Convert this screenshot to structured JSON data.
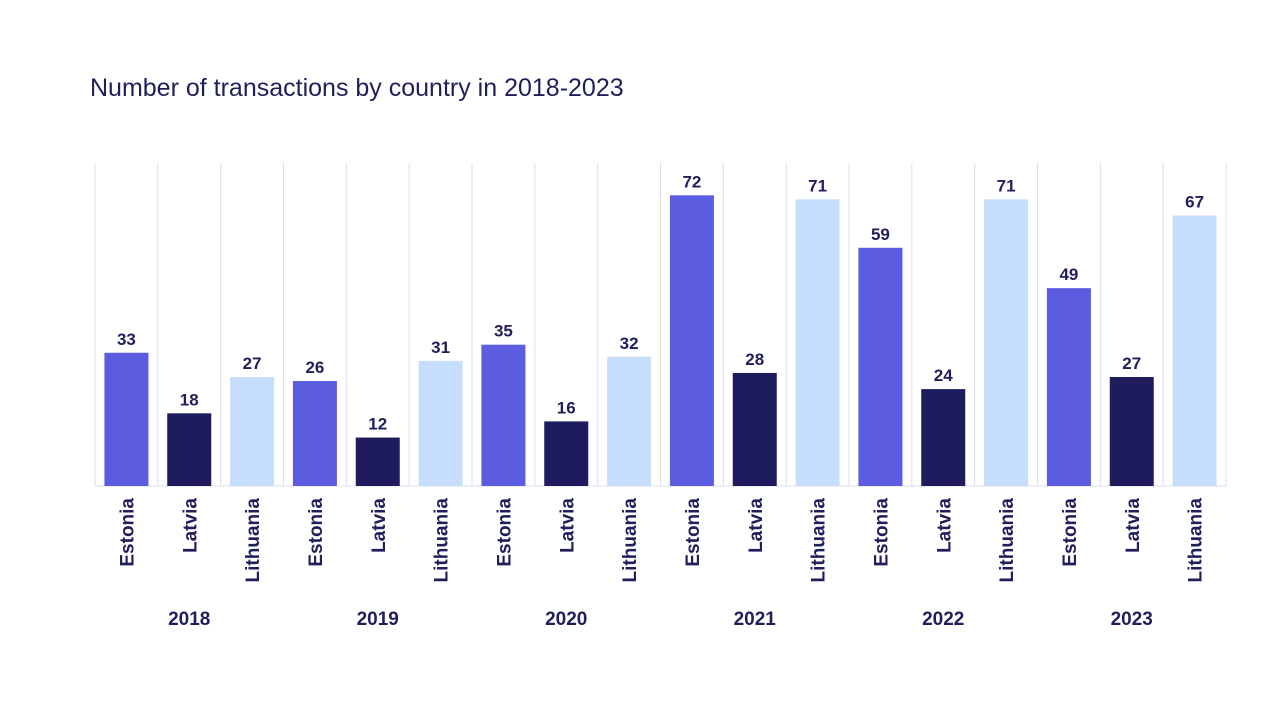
{
  "chart_data": {
    "type": "bar",
    "title": "Number of transactions by country in 2018-2023",
    "categories": [
      "2018",
      "2019",
      "2020",
      "2021",
      "2022",
      "2023"
    ],
    "series": [
      {
        "name": "Estonia",
        "color": "#5b5ce0",
        "values": [
          33,
          26,
          35,
          72,
          59,
          49
        ]
      },
      {
        "name": "Latvia",
        "color": "#1e1c5c",
        "values": [
          18,
          12,
          16,
          28,
          24,
          27
        ]
      },
      {
        "name": "Lithuania",
        "color": "#c6defb",
        "values": [
          27,
          31,
          32,
          71,
          71,
          67
        ]
      }
    ],
    "ylim": [
      0,
      80
    ],
    "grid": true
  }
}
